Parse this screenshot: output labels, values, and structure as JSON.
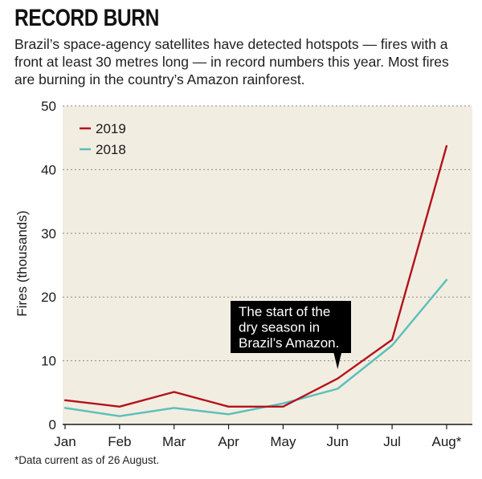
{
  "header": {
    "title": "RECORD BURN",
    "subtitle": "Brazil’s space-agency satellites have detected hotspots — fires with a front at least 30 metres long — in record numbers this year. Most fires are burning in the country’s Amazon rainforest."
  },
  "footnote": "*Data current as of 26 August.",
  "chart_data": {
    "type": "line",
    "title": "RECORD BURN",
    "xlabel": "",
    "ylabel": "Fires (thousands)",
    "categories": [
      "Jan",
      "Feb",
      "Mar",
      "Apr",
      "May",
      "Jun",
      "Jul",
      "Aug*"
    ],
    "ylim": [
      0,
      50
    ],
    "yticks": [
      0,
      10,
      20,
      30,
      40,
      50
    ],
    "grid": "horizontal dotted",
    "legend_position": "top-left",
    "series": [
      {
        "name": "2019",
        "color": "#b5121b",
        "values": [
          3.8,
          2.8,
          5.1,
          2.8,
          2.8,
          7.2,
          13.3,
          43.7
        ]
      },
      {
        "name": "2018",
        "color": "#5bbfba",
        "values": [
          2.6,
          1.3,
          2.6,
          1.6,
          3.3,
          5.6,
          12.4,
          22.7
        ]
      }
    ],
    "annotations": [
      {
        "lines": [
          "The start of the",
          "dry season in",
          "Brazil’s Amazon."
        ],
        "points_to": "Jun"
      }
    ],
    "plot_background": "#f1ede1"
  }
}
